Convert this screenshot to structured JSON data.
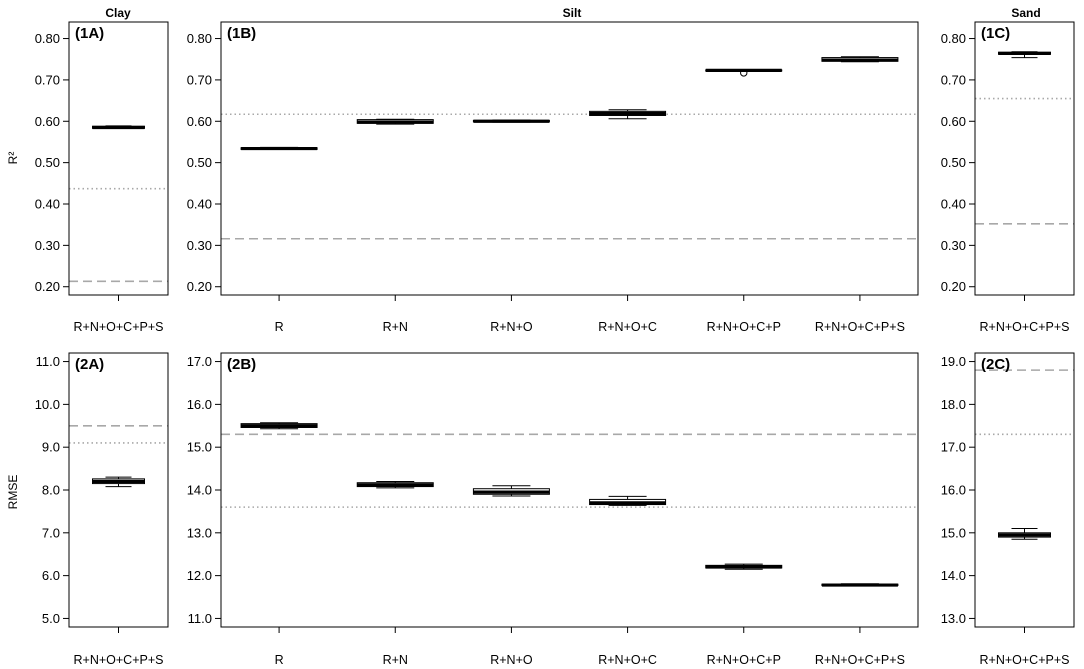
{
  "column_titles": [
    "Clay",
    "Silt",
    "Sand"
  ],
  "row_labels": [
    "R²",
    "RMSE"
  ],
  "chart_data": [
    {
      "type": "box",
      "panel": "(1A)",
      "column": "Clay",
      "ylim": [
        0.18,
        0.84
      ],
      "yticks": [
        "0.20",
        "0.30",
        "0.40",
        "0.50",
        "0.60",
        "0.70",
        "0.80"
      ],
      "categories": [
        "R+N+O+C+P+S"
      ],
      "boxes": [
        {
          "min": 0.583,
          "q1": 0.583,
          "median": 0.585,
          "q3": 0.588,
          "max": 0.589
        }
      ],
      "ref_dotted": 0.437,
      "ref_dashed": 0.213
    },
    {
      "type": "box",
      "panel": "(1B)",
      "column": "Silt",
      "ylim": [
        0.18,
        0.84
      ],
      "yticks": [
        "0.20",
        "0.30",
        "0.40",
        "0.50",
        "0.60",
        "0.70",
        "0.80"
      ],
      "categories": [
        "R",
        "R+N",
        "R+N+O",
        "R+N+O+C",
        "R+N+O+C+P",
        "R+N+O+C+P+S"
      ],
      "boxes": [
        {
          "min": 0.532,
          "q1": 0.532,
          "median": 0.534,
          "q3": 0.536,
          "max": 0.537
        },
        {
          "min": 0.593,
          "q1": 0.595,
          "median": 0.598,
          "q3": 0.604,
          "max": 0.605
        },
        {
          "min": 0.598,
          "q1": 0.599,
          "median": 0.6,
          "q3": 0.602,
          "max": 0.603
        },
        {
          "min": 0.606,
          "q1": 0.614,
          "median": 0.619,
          "q3": 0.624,
          "max": 0.628
        },
        {
          "min": 0.721,
          "q1": 0.722,
          "median": 0.723,
          "q3": 0.724,
          "max": 0.725,
          "outliers": [
            0.717
          ]
        },
        {
          "min": 0.744,
          "q1": 0.745,
          "median": 0.748,
          "q3": 0.754,
          "max": 0.756
        }
      ],
      "ref_dotted": 0.617,
      "ref_dashed": 0.316
    },
    {
      "type": "box",
      "panel": "(1C)",
      "column": "Sand",
      "ylim": [
        0.18,
        0.84
      ],
      "yticks": [
        "0.20",
        "0.30",
        "0.40",
        "0.50",
        "0.60",
        "0.70",
        "0.80"
      ],
      "categories": [
        "R+N+O+C+P+S"
      ],
      "boxes": [
        {
          "min": 0.754,
          "q1": 0.762,
          "median": 0.764,
          "q3": 0.767,
          "max": 0.768
        }
      ],
      "ref_dotted": 0.655,
      "ref_dashed": 0.352
    },
    {
      "type": "box",
      "panel": "(2A)",
      "column": "Clay",
      "ylim": [
        4.8,
        11.2
      ],
      "yticks": [
        "5.0",
        "6.0",
        "7.0",
        "8.0",
        "9.0",
        "10.0",
        "11.0"
      ],
      "categories": [
        "R+N+O+C+P+S"
      ],
      "boxes": [
        {
          "min": 8.08,
          "q1": 8.15,
          "median": 8.2,
          "q3": 8.26,
          "max": 8.3
        }
      ],
      "ref_dotted": 9.1,
      "ref_dashed": 9.5
    },
    {
      "type": "box",
      "panel": "(2B)",
      "column": "Silt",
      "ylim": [
        10.8,
        17.2
      ],
      "yticks": [
        "11.0",
        "12.0",
        "13.0",
        "14.0",
        "15.0",
        "16.0",
        "17.0"
      ],
      "categories": [
        "R",
        "R+N",
        "R+N+O",
        "R+N+O+C",
        "R+N+O+C+P",
        "R+N+O+C+P+S"
      ],
      "boxes": [
        {
          "min": 15.43,
          "q1": 15.46,
          "median": 15.5,
          "q3": 15.55,
          "max": 15.57
        },
        {
          "min": 14.05,
          "q1": 14.08,
          "median": 14.12,
          "q3": 14.17,
          "max": 14.2
        },
        {
          "min": 13.86,
          "q1": 13.9,
          "median": 13.95,
          "q3": 14.03,
          "max": 14.1
        },
        {
          "min": 13.64,
          "q1": 13.66,
          "median": 13.7,
          "q3": 13.78,
          "max": 13.85
        },
        {
          "min": 12.15,
          "q1": 12.18,
          "median": 12.2,
          "q3": 12.24,
          "max": 12.27
        },
        {
          "min": 11.76,
          "q1": 11.77,
          "median": 11.78,
          "q3": 11.8,
          "max": 11.81
        }
      ],
      "ref_dotted": 13.6,
      "ref_dashed": 15.3
    },
    {
      "type": "box",
      "panel": "(2C)",
      "column": "Sand",
      "ylim": [
        12.8,
        19.2
      ],
      "yticks": [
        "13.0",
        "14.0",
        "15.0",
        "16.0",
        "17.0",
        "18.0",
        "19.0"
      ],
      "categories": [
        "R+N+O+C+P+S"
      ],
      "boxes": [
        {
          "min": 14.85,
          "q1": 14.9,
          "median": 14.95,
          "q3": 15.0,
          "max": 15.1
        }
      ],
      "ref_dotted": 17.3,
      "ref_dashed": 18.8
    }
  ]
}
